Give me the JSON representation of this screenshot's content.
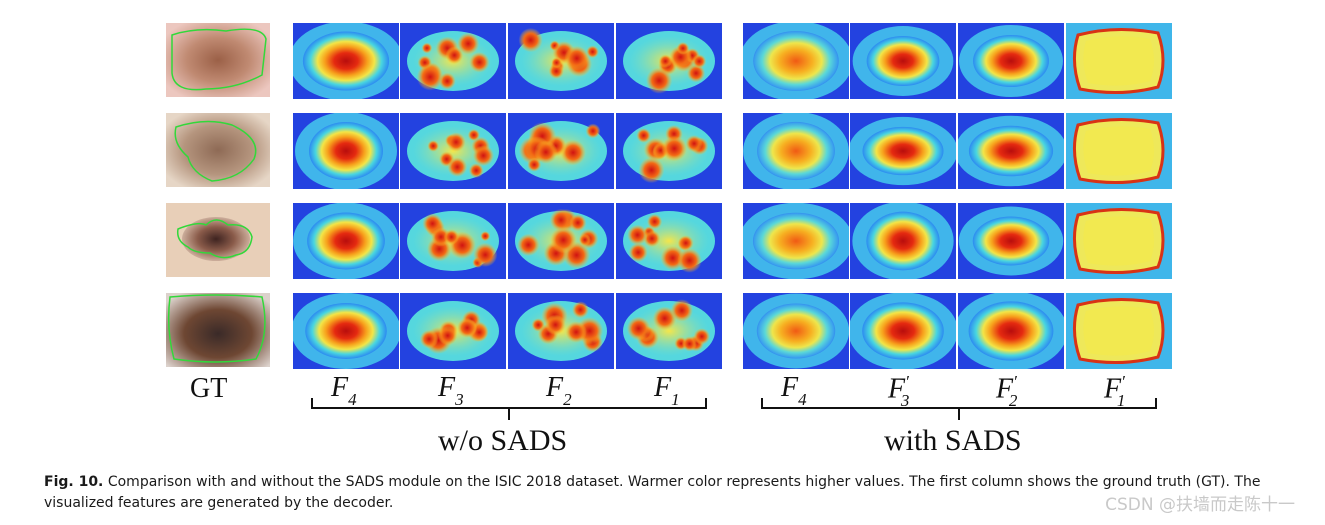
{
  "figure": {
    "gt_label": "GT",
    "without_group": {
      "label": "w/o SADS",
      "columns": [
        {
          "base": "F",
          "sub": "4",
          "sup": ""
        },
        {
          "base": "F",
          "sub": "3",
          "sup": ""
        },
        {
          "base": "F",
          "sub": "2",
          "sup": ""
        },
        {
          "base": "F",
          "sub": "1",
          "sup": ""
        }
      ]
    },
    "with_group": {
      "label": "with SADS",
      "columns": [
        {
          "base": "F",
          "sub": "4",
          "sup": ""
        },
        {
          "base": "F",
          "sub": "3",
          "sup": "′"
        },
        {
          "base": "F",
          "sub": "2",
          "sup": "′"
        },
        {
          "base": "F",
          "sub": "1",
          "sup": "′"
        }
      ]
    }
  },
  "caption": {
    "fig_number": "Fig. 10.",
    "text": "Comparison with and without the SADS module on the ISIC 2018 dataset. Warmer color represents higher values. The first column shows the ground truth (GT). The visualized features are generated by the decoder."
  },
  "watermark": "CSDN @扶墙而走陈十一",
  "colors": {
    "cold": "#1a2ee0",
    "cyan": "#2fd0e8",
    "yellow": "#f4e84a",
    "orange": "#f5901e",
    "red": "#d81818"
  }
}
